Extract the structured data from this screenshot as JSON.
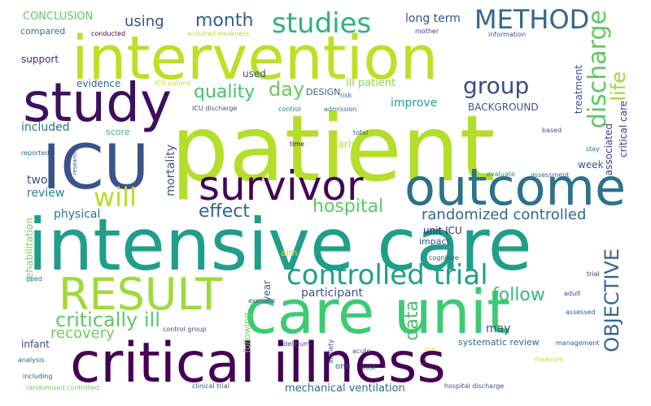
{
  "words": [
    {
      "text": "patient",
      "color": "#b5de2b"
    },
    {
      "text": "intensive care",
      "color": "#1f9e89"
    },
    {
      "text": "intervention",
      "color": "#bddf26"
    },
    {
      "text": "critical illness",
      "color": "#440154"
    },
    {
      "text": "care unit",
      "color": "#3ccb74"
    },
    {
      "text": "study",
      "color": "#3e0f5e"
    },
    {
      "text": "outcome",
      "color": "#2c718e"
    },
    {
      "text": "ICU",
      "color": "#3b528b"
    },
    {
      "text": "survivor",
      "color": "#440154"
    },
    {
      "text": "RESULT",
      "color": "#a0da39"
    },
    {
      "text": "controlled trial",
      "color": "#1fa088"
    },
    {
      "text": "METHOD",
      "color": "#31688e"
    },
    {
      "text": "studies",
      "color": "#2db27d"
    },
    {
      "text": "group",
      "color": "#3f4889"
    },
    {
      "text": "discharge",
      "color": "#5ec962"
    },
    {
      "text": "will",
      "color": "#b8de29"
    },
    {
      "text": "critically ill",
      "color": "#5cc863"
    },
    {
      "text": "month",
      "color": "#35608d"
    },
    {
      "text": "quality",
      "color": "#46c06f"
    },
    {
      "text": "effect",
      "color": "#32648e"
    },
    {
      "text": "hospital",
      "color": "#5ec962"
    },
    {
      "text": "day",
      "color": "#65cb5e"
    },
    {
      "text": "life",
      "color": "#9dd93b"
    },
    {
      "text": "OBJECTIVE",
      "color": "#31688e"
    },
    {
      "text": "randomized controlled",
      "color": "#31688e"
    },
    {
      "text": "follow",
      "color": "#3aba76"
    },
    {
      "text": "recovery",
      "color": "#6ccd5a"
    },
    {
      "text": "participant",
      "color": "#3b528b"
    },
    {
      "text": "data",
      "color": "#4ac16d"
    },
    {
      "text": "CONCLUSION",
      "color": "#5ec962"
    },
    {
      "text": "using",
      "color": "#3b528b"
    },
    {
      "text": "long term",
      "color": "#3b528b"
    },
    {
      "text": "compared",
      "color": "#2c728e"
    },
    {
      "text": "conducted",
      "color": "#440154"
    },
    {
      "text": "acquired weakness",
      "color": "#c0df25"
    },
    {
      "text": "mother",
      "color": "#443983"
    },
    {
      "text": "information",
      "color": "#3b528b"
    },
    {
      "text": "support",
      "color": "#482878"
    },
    {
      "text": "used",
      "color": "#3b528b"
    },
    {
      "text": "evidence",
      "color": "#31688e"
    },
    {
      "text": "ICU patient",
      "color": "#c8e020"
    },
    {
      "text": "DESIGN",
      "color": "#35608d"
    },
    {
      "text": "risk",
      "color": "#35608d"
    },
    {
      "text": "ill patient",
      "color": "#8bd646"
    },
    {
      "text": "treatment",
      "color": "#3b528b"
    },
    {
      "text": "improve",
      "color": "#1fa088"
    },
    {
      "text": "BACKGROUND",
      "color": "#3b528b"
    },
    {
      "text": "critical care",
      "color": "#443983"
    },
    {
      "text": "included",
      "color": "#2c718e"
    },
    {
      "text": "score",
      "color": "#35b779"
    },
    {
      "text": "ICU discharge",
      "color": "#3b528b"
    },
    {
      "text": "control",
      "color": "#2a788e"
    },
    {
      "text": "admission",
      "color": "#2f6b8e"
    },
    {
      "text": "associated",
      "color": "#443983"
    },
    {
      "text": "total",
      "color": "#35608d"
    },
    {
      "text": "based",
      "color": "#3b528b"
    },
    {
      "text": "stay",
      "color": "#2c728e"
    },
    {
      "text": "time",
      "color": "#440154"
    },
    {
      "text": "early",
      "color": "#c2df23"
    },
    {
      "text": "reported",
      "color": "#31688e"
    },
    {
      "text": "research",
      "color": "#3b528b"
    },
    {
      "text": "week",
      "color": "#3b528b"
    },
    {
      "text": "two",
      "color": "#3b528b"
    },
    {
      "text": "review",
      "color": "#26818e"
    },
    {
      "text": "evaluate",
      "color": "#21918c"
    },
    {
      "text": "assessment",
      "color": "#31688e"
    },
    {
      "text": "mortality",
      "color": "#3b528b"
    },
    {
      "text": "physical",
      "color": "#2c728e"
    },
    {
      "text": "unit ICU",
      "color": "#481f70"
    },
    {
      "text": "impact",
      "color": "#3b528b"
    },
    {
      "text": "rehabilitation",
      "color": "#7ad151"
    },
    {
      "text": "aim",
      "color": "#d2e21b"
    },
    {
      "text": "cognitive",
      "color": "#3b528b"
    },
    {
      "text": "need",
      "color": "#2a788e"
    },
    {
      "text": "exercise",
      "color": "#3b528b"
    },
    {
      "text": "year",
      "color": "#31688e"
    },
    {
      "text": "trial",
      "color": "#443983"
    },
    {
      "text": "adult",
      "color": "#3b528b"
    },
    {
      "text": "assessed",
      "color": "#3b528b"
    },
    {
      "text": "infant",
      "color": "#3e4989"
    },
    {
      "text": "control group",
      "color": "#3b528b"
    },
    {
      "text": "following",
      "color": "#77d153"
    },
    {
      "text": "may",
      "color": "#3b528b"
    },
    {
      "text": "systematic review",
      "color": "#31688e"
    },
    {
      "text": "management",
      "color": "#3b528b"
    },
    {
      "text": "delirium",
      "color": "#3b528b"
    },
    {
      "text": "anxiety",
      "color": "#3b528b"
    },
    {
      "text": "acute",
      "color": "#3b528b"
    },
    {
      "text": "use",
      "color": "#e4e419"
    },
    {
      "text": "analysis",
      "color": "#3b528b"
    },
    {
      "text": "one",
      "color": "#3b528b"
    },
    {
      "text": "cost",
      "color": "#3b528b"
    },
    {
      "text": "measure",
      "color": "#c8e020"
    },
    {
      "text": "including",
      "color": "#3b528b"
    },
    {
      "text": "randomised controlled",
      "color": "#6ccd5a"
    },
    {
      "text": "clinical trial",
      "color": "#3b528b"
    },
    {
      "text": "mechanical ventilation",
      "color": "#31688e"
    },
    {
      "text": "hospital discharge",
      "color": "#3b528b"
    }
  ]
}
